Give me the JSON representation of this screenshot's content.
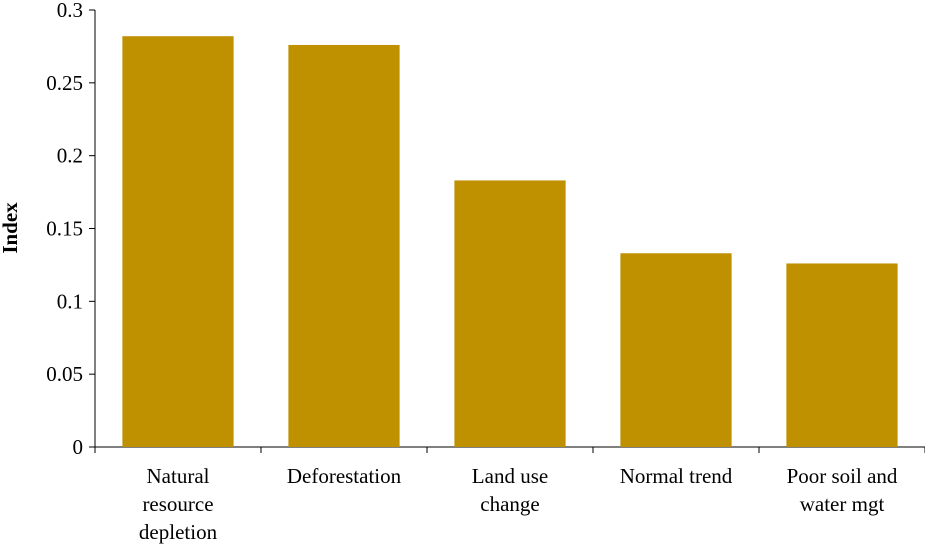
{
  "chart_data": {
    "type": "bar",
    "title": "",
    "xlabel": "",
    "ylabel": "Index",
    "categories": [
      "Natural resource depletion",
      "Deforestation",
      "Land use change",
      "Normal trend",
      "Poor soil and water mgt"
    ],
    "category_lines": [
      [
        "Natural",
        "resource",
        "depletion"
      ],
      [
        "Deforestation"
      ],
      [
        "Land use",
        "change"
      ],
      [
        "Normal trend"
      ],
      [
        "Poor soil and",
        "water mgt"
      ]
    ],
    "values": [
      0.282,
      0.276,
      0.183,
      0.133,
      0.126
    ],
    "ylim": [
      0,
      0.3
    ],
    "yticks": [
      0,
      0.05,
      0.1,
      0.15,
      0.2,
      0.25,
      0.3
    ],
    "ytick_labels": [
      "0",
      "0.05",
      "0.1",
      "0.15",
      "0.2",
      "0.25",
      "0.3"
    ],
    "grid": false,
    "legend": "none",
    "colors": {
      "bar": "#BF9000",
      "axis": "#000000"
    }
  }
}
